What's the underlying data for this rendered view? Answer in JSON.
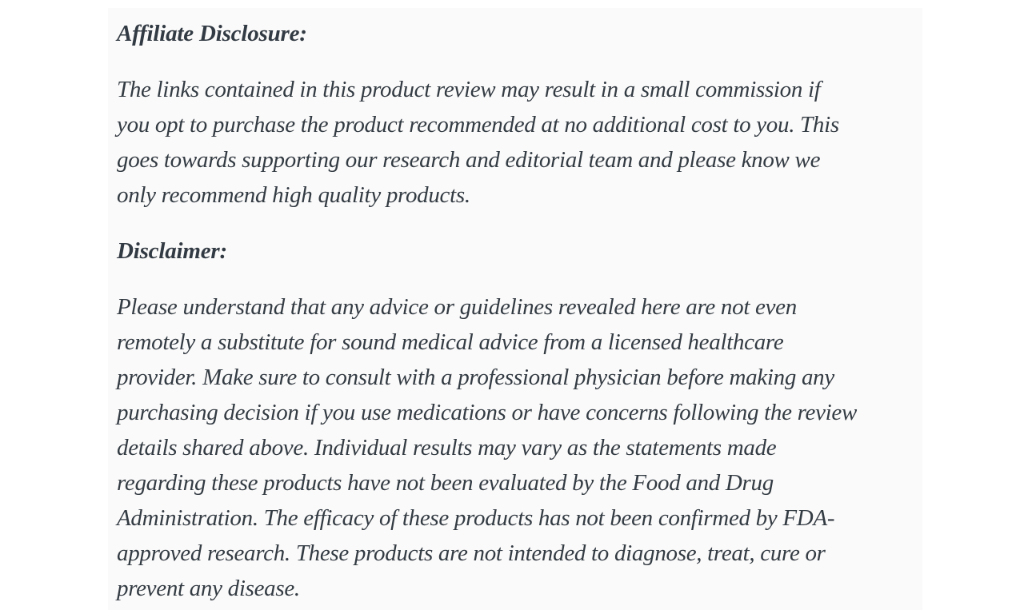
{
  "colors": {
    "page_background": "#ffffff",
    "panel_background": "#fbfafa",
    "text": "#333b43"
  },
  "article": {
    "affiliate": {
      "heading": "Affiliate Disclosure:",
      "paragraph_lines": [
        "The links contained in this product review may result in a small commission if",
        "you opt to purchase the product recommended at no additional cost to you. This",
        "goes towards supporting our research and editorial team and please know we",
        "only recommend high quality products."
      ]
    },
    "disclaimer": {
      "heading": "Disclaimer:",
      "paragraph_lines": [
        "Please understand that any advice or guidelines revealed here are not even",
        "remotely a substitute for sound medical advice from a licensed healthcare",
        "provider. Make sure to consult with a professional physician before making any",
        "purchasing decision if you use medications or have concerns following the review",
        "details shared above. Individual results may vary as the statements made",
        "regarding these products have not been evaluated by the Food and Drug",
        "Administration. The efficacy of these products has not been confirmed by FDA-",
        "approved research. These products are not intended to diagnose, treat, cure or",
        "prevent any disease."
      ]
    }
  }
}
